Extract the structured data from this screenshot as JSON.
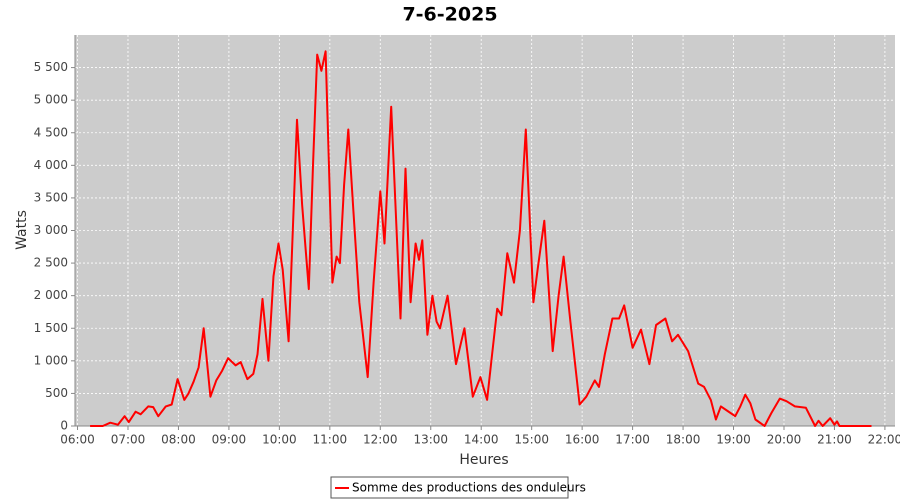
{
  "chart_data": {
    "type": "line",
    "title": "7-6-2025",
    "x_label": "Heures",
    "y_label": "Watts",
    "x": [
      "06:15",
      "06:30",
      "06:39",
      "06:48",
      "06:56",
      "07:01",
      "07:09",
      "07:15",
      "07:24",
      "07:30",
      "07:36",
      "07:45",
      "07:52",
      "07:59",
      "08:07",
      "08:12",
      "08:18",
      "08:24",
      "08:30",
      "08:38",
      "08:45",
      "08:52",
      "08:59",
      "09:08",
      "09:14",
      "09:22",
      "09:29",
      "09:34",
      "09:40",
      "09:47",
      "09:53",
      "09:59",
      "10:04",
      "10:11",
      "10:16",
      "10:21",
      "10:27",
      "10:35",
      "10:40",
      "10:45",
      "10:50",
      "10:55",
      "11:03",
      "11:08",
      "11:12",
      "11:17",
      "11:22",
      "11:28",
      "11:35",
      "11:45",
      "11:52",
      "12:00",
      "12:05",
      "12:13",
      "12:19",
      "12:24",
      "12:30",
      "12:36",
      "12:42",
      "12:46",
      "12:50",
      "12:56",
      "13:02",
      "13:07",
      "13:11",
      "13:20",
      "13:30",
      "13:40",
      "13:50",
      "13:59",
      "14:07",
      "14:13",
      "14:19",
      "14:24",
      "14:31",
      "14:39",
      "14:46",
      "14:53",
      "15:02",
      "15:07",
      "15:15",
      "15:25",
      "15:32",
      "15:38",
      "15:46",
      "15:57",
      "16:05",
      "16:15",
      "16:20",
      "16:27",
      "16:36",
      "16:44",
      "16:50",
      "17:00",
      "17:10",
      "17:20",
      "17:28",
      "17:39",
      "17:47",
      "17:54",
      "18:06",
      "18:18",
      "18:25",
      "18:33",
      "18:39",
      "18:45",
      "18:53",
      "19:02",
      "19:08",
      "19:14",
      "19:20",
      "19:26",
      "19:37",
      "19:45",
      "19:55",
      "20:03",
      "20:13",
      "20:26",
      "20:37",
      "20:41",
      "20:46",
      "20:55",
      "21:00",
      "21:03",
      "21:06",
      "21:44"
    ],
    "series": [
      {
        "name": "Somme des productions des onduleurs",
        "color": "#ff0000",
        "values": [
          0,
          0,
          50,
          20,
          150,
          60,
          220,
          180,
          300,
          290,
          150,
          300,
          330,
          720,
          400,
          500,
          680,
          900,
          1500,
          450,
          700,
          850,
          1040,
          930,
          980,
          720,
          800,
          1100,
          1950,
          1000,
          2300,
          2800,
          2400,
          1300,
          3000,
          4700,
          3400,
          2100,
          4000,
          5700,
          5450,
          5750,
          2200,
          2600,
          2500,
          3700,
          4550,
          3300,
          1900,
          750,
          2200,
          3600,
          2800,
          4900,
          3100,
          1650,
          3950,
          1900,
          2800,
          2550,
          2850,
          1400,
          2000,
          1600,
          1500,
          2000,
          950,
          1500,
          450,
          750,
          400,
          1100,
          1800,
          1700,
          2650,
          2200,
          3000,
          4550,
          1900,
          2400,
          3150,
          1150,
          2000,
          2600,
          1600,
          330,
          450,
          700,
          600,
          1100,
          1650,
          1650,
          1850,
          1200,
          1480,
          950,
          1550,
          1650,
          1300,
          1400,
          1150,
          650,
          600,
          400,
          100,
          300,
          230,
          150,
          300,
          480,
          350,
          100,
          0,
          200,
          420,
          380,
          300,
          280,
          0,
          80,
          0,
          120,
          20,
          70,
          0,
          0
        ]
      }
    ],
    "xlim": [
      "05:57",
      "22:12"
    ],
    "xticks": [
      "06:00",
      "07:00",
      "08:00",
      "09:00",
      "10:00",
      "11:00",
      "12:00",
      "13:00",
      "14:00",
      "15:00",
      "16:00",
      "17:00",
      "18:00",
      "19:00",
      "20:00",
      "21:00",
      "22:00"
    ],
    "ylim": [
      0,
      6000
    ],
    "yticks": [
      0,
      500,
      {
        "value": 1000,
        "label": "1 000"
      },
      {
        "value": 1500,
        "label": "1 500"
      },
      {
        "value": 2000,
        "label": "2 000"
      },
      {
        "value": 2500,
        "label": "2 500"
      },
      {
        "value": 3000,
        "label": "3 000"
      },
      {
        "value": 3500,
        "label": "3 500"
      },
      {
        "value": 4000,
        "label": "4 000"
      },
      {
        "value": 4500,
        "label": "4 500"
      },
      {
        "value": 5000,
        "label": "5 000"
      },
      {
        "value": 5500,
        "label": "5 500"
      }
    ],
    "grid": true,
    "legend": "bottom"
  }
}
